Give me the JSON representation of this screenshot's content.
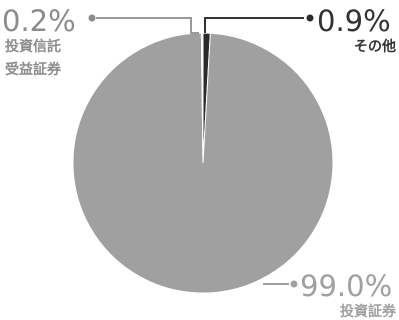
{
  "chart_data": {
    "type": "pie",
    "start": "top",
    "direction": "clockwise",
    "slices": [
      {
        "label_line1": "その他",
        "label_line2": "",
        "value": 0.9,
        "value_text": "0.9%",
        "color": "#2b2b2b",
        "text_color": "#333333"
      },
      {
        "label_line1": "投資証券",
        "label_line2": "",
        "value": 99.0,
        "value_text": "99.0%",
        "color": "#a0a0a0",
        "text_color": "#a0a0a0"
      },
      {
        "label_line1": "投資信託",
        "label_line2": "受益証券",
        "value": 0.2,
        "value_text": "0.2%",
        "color": "#ffffff",
        "text_color": "#8c8c8c"
      }
    ]
  }
}
